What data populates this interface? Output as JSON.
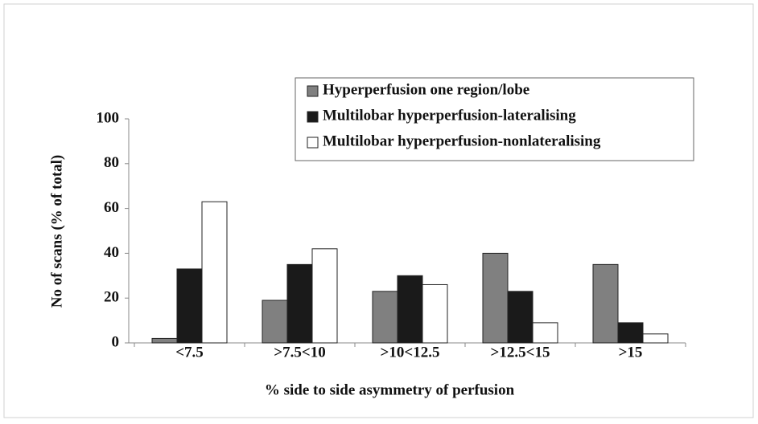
{
  "chart_data": {
    "type": "bar",
    "x_label": "% side to side asymmetry of perfusion",
    "y_label": "No of scans (% of total)",
    "categories": [
      "<7.5",
      ">7.5<10",
      ">10<12.5",
      ">12.5<15",
      ">15"
    ],
    "series": [
      {
        "name": "Hyperperfusion one region/lobe",
        "color": "#808080",
        "values": [
          2,
          19,
          23,
          40,
          35
        ]
      },
      {
        "name": "Multilobar hyperperfusion-lateralising",
        "color": "#1a1a1a",
        "values": [
          33,
          35,
          30,
          23,
          9
        ]
      },
      {
        "name": "Multilobar hyperperfusion-nonlateralising",
        "color": "#ffffff",
        "values": [
          63,
          42,
          26,
          9,
          4
        ]
      }
    ],
    "ylim": [
      0,
      100
    ],
    "yticks": [
      0,
      20,
      40,
      60,
      80,
      100
    ],
    "grid": false,
    "legend": "top-right"
  }
}
